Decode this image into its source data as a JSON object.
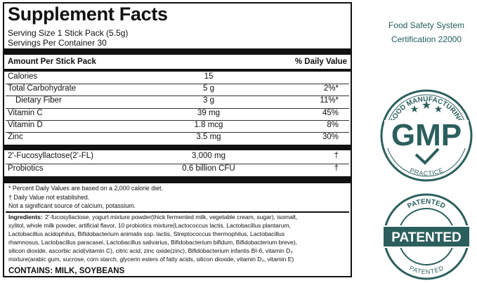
{
  "facts": {
    "title": "Supplement Facts",
    "serving_size": "Serving Size 1 Stick Pack (5.5g)",
    "servings_per_container": "Servings Per Container 30",
    "header": {
      "amount": "Amount Per Stick Pack",
      "daily_value": "% Daily Value"
    },
    "rows": [
      {
        "name": "Calories",
        "amount": "15"
      },
      {
        "name": "Total Carbohydrate",
        "amount": "5 g",
        "dv": "2%*"
      },
      {
        "name": "Dietary Fiber",
        "amount": "3 g",
        "dv": "11%*",
        "indent": true
      },
      {
        "name": "Vitamin C",
        "amount": "39 mg",
        "dv": "45%"
      },
      {
        "name": "Vitamin D",
        "amount": "1.8 mcg",
        "dv": "8%"
      },
      {
        "name": "Zinc",
        "amount": "3.5 mg",
        "dv": "30%"
      }
    ],
    "other_rows": [
      {
        "name": "2'-Fucosyllactose(2'-FL)",
        "amount": "3,000 mg",
        "dv": "†"
      },
      {
        "name": "Probiotics",
        "amount": "0.6 billion CFU",
        "dv": "†"
      }
    ],
    "notes": [
      "* Percent Daily Values are based on a 2,000 calorie diet.",
      "† Daily Value not established.",
      "Not a significant source of calcium, potassium."
    ],
    "ingredients_label": "Ingredients:",
    "ingredients_lines": [
      "2'-fucosyllactose, yogurt mixture powder(thick fermented milk, vegetable cream, sugar), isomalt,",
      "xylitol, whole milk powder, artificial flavor, 10 probiotics mixture(Lactococcus lactis, Lactobacillus plantarum,",
      "Lactobacillus acidophilus, Bifidobacterium animalis ssp. lactis, Streptococcus thermophilus, Lactobacillus",
      "rhamnosus, Lactobacillus paracasei, Lactobacillus salivarius, Bifidobacterium bifidum, Bifidobacterium breve),",
      "silicon dioxide, ascorbic acid(vitamin C), citric acid, zinc oxide(zinc), Bifidobacterium infantis BI-6, vitamin D₃",
      "mixture(arabic gum, sucrose, corn starch, glycerin esters of fatty acids, silicon dioxide, vitamin D₃, vitamin E)"
    ],
    "contains": "CONTAINS: MILK, SOYBEANS"
  },
  "badges": {
    "fssc": [
      "Food Safety System",
      "Certification 22000"
    ],
    "gmp": {
      "top": "GOOD MANUFACTURING",
      "center": "GMP",
      "bottom": "PRACTICE"
    },
    "patented": {
      "top": "PATENTED",
      "center": "PATENTED",
      "bottom": "PATENTED"
    }
  }
}
